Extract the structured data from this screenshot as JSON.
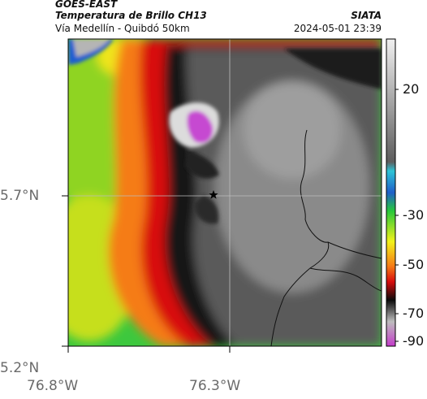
{
  "header": {
    "satellite": "GOES-EAST",
    "product": "Temperatura de Brillo CH13",
    "route": "Vía Medellín - Quibdó 50km",
    "agency": "SIATA",
    "timestamp": "2024-05-01 23:39"
  },
  "axes": {
    "lat_labels": [
      "5.7°N",
      "5.2°N"
    ],
    "lon_labels": [
      "76.8°W",
      "76.3°W"
    ]
  },
  "colorbar": {
    "ticks": [
      "20",
      "-30",
      "-50",
      "-70",
      "-90"
    ],
    "colors": {
      "hot": "#e9e9e9",
      "cyan": "#2ec4d6",
      "green": "#27c83a",
      "yellow": "#f2f21b",
      "orange": "#f57b17",
      "red": "#d80d0d",
      "black": "#0b0b0b",
      "magenta": "#c33cc9"
    }
  }
}
